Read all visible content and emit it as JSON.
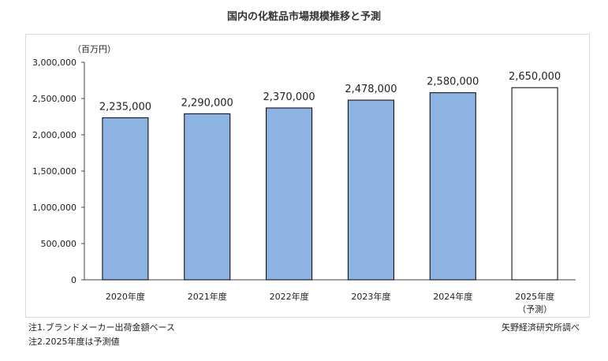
{
  "chart_title": "国内の化粧品市場規模推移と予測",
  "notes": {
    "note1": "注1.ブランドメーカー出荷金額ベース",
    "note2": "注2.2025年度は予測値"
  },
  "source": "矢野経済研究所調べ",
  "colors": {
    "bar_actual": "#8db3e2",
    "bar_forecast": "#ffffff",
    "bar_border": "#000000"
  },
  "chart_data": {
    "type": "bar",
    "title": "国内の化粧品市場規模推移と予測",
    "unit_label": "（百万円）",
    "xlabel": "",
    "ylabel": "",
    "ylim": [
      0,
      3000000
    ],
    "yticks": [
      0,
      500000,
      1000000,
      1500000,
      2000000,
      2500000,
      3000000
    ],
    "ytick_labels": [
      "0",
      "500,000",
      "1,000,000",
      "1,500,000",
      "2,000,000",
      "2,500,000",
      "3,000,000"
    ],
    "categories": [
      "2020年度",
      "2021年度",
      "2022年度",
      "2023年度",
      "2024年度",
      "2025年度"
    ],
    "category_sublabels": [
      "",
      "",
      "",
      "",
      "",
      "（予測）"
    ],
    "values": [
      2235000,
      2290000,
      2370000,
      2478000,
      2580000,
      2650000
    ],
    "data_labels": [
      "2,235,000",
      "2,290,000",
      "2,370,000",
      "2,478,000",
      "2,580,000",
      "2,650,000"
    ],
    "forecast": [
      false,
      false,
      false,
      false,
      false,
      true
    ],
    "grid": false,
    "legend": "none"
  }
}
